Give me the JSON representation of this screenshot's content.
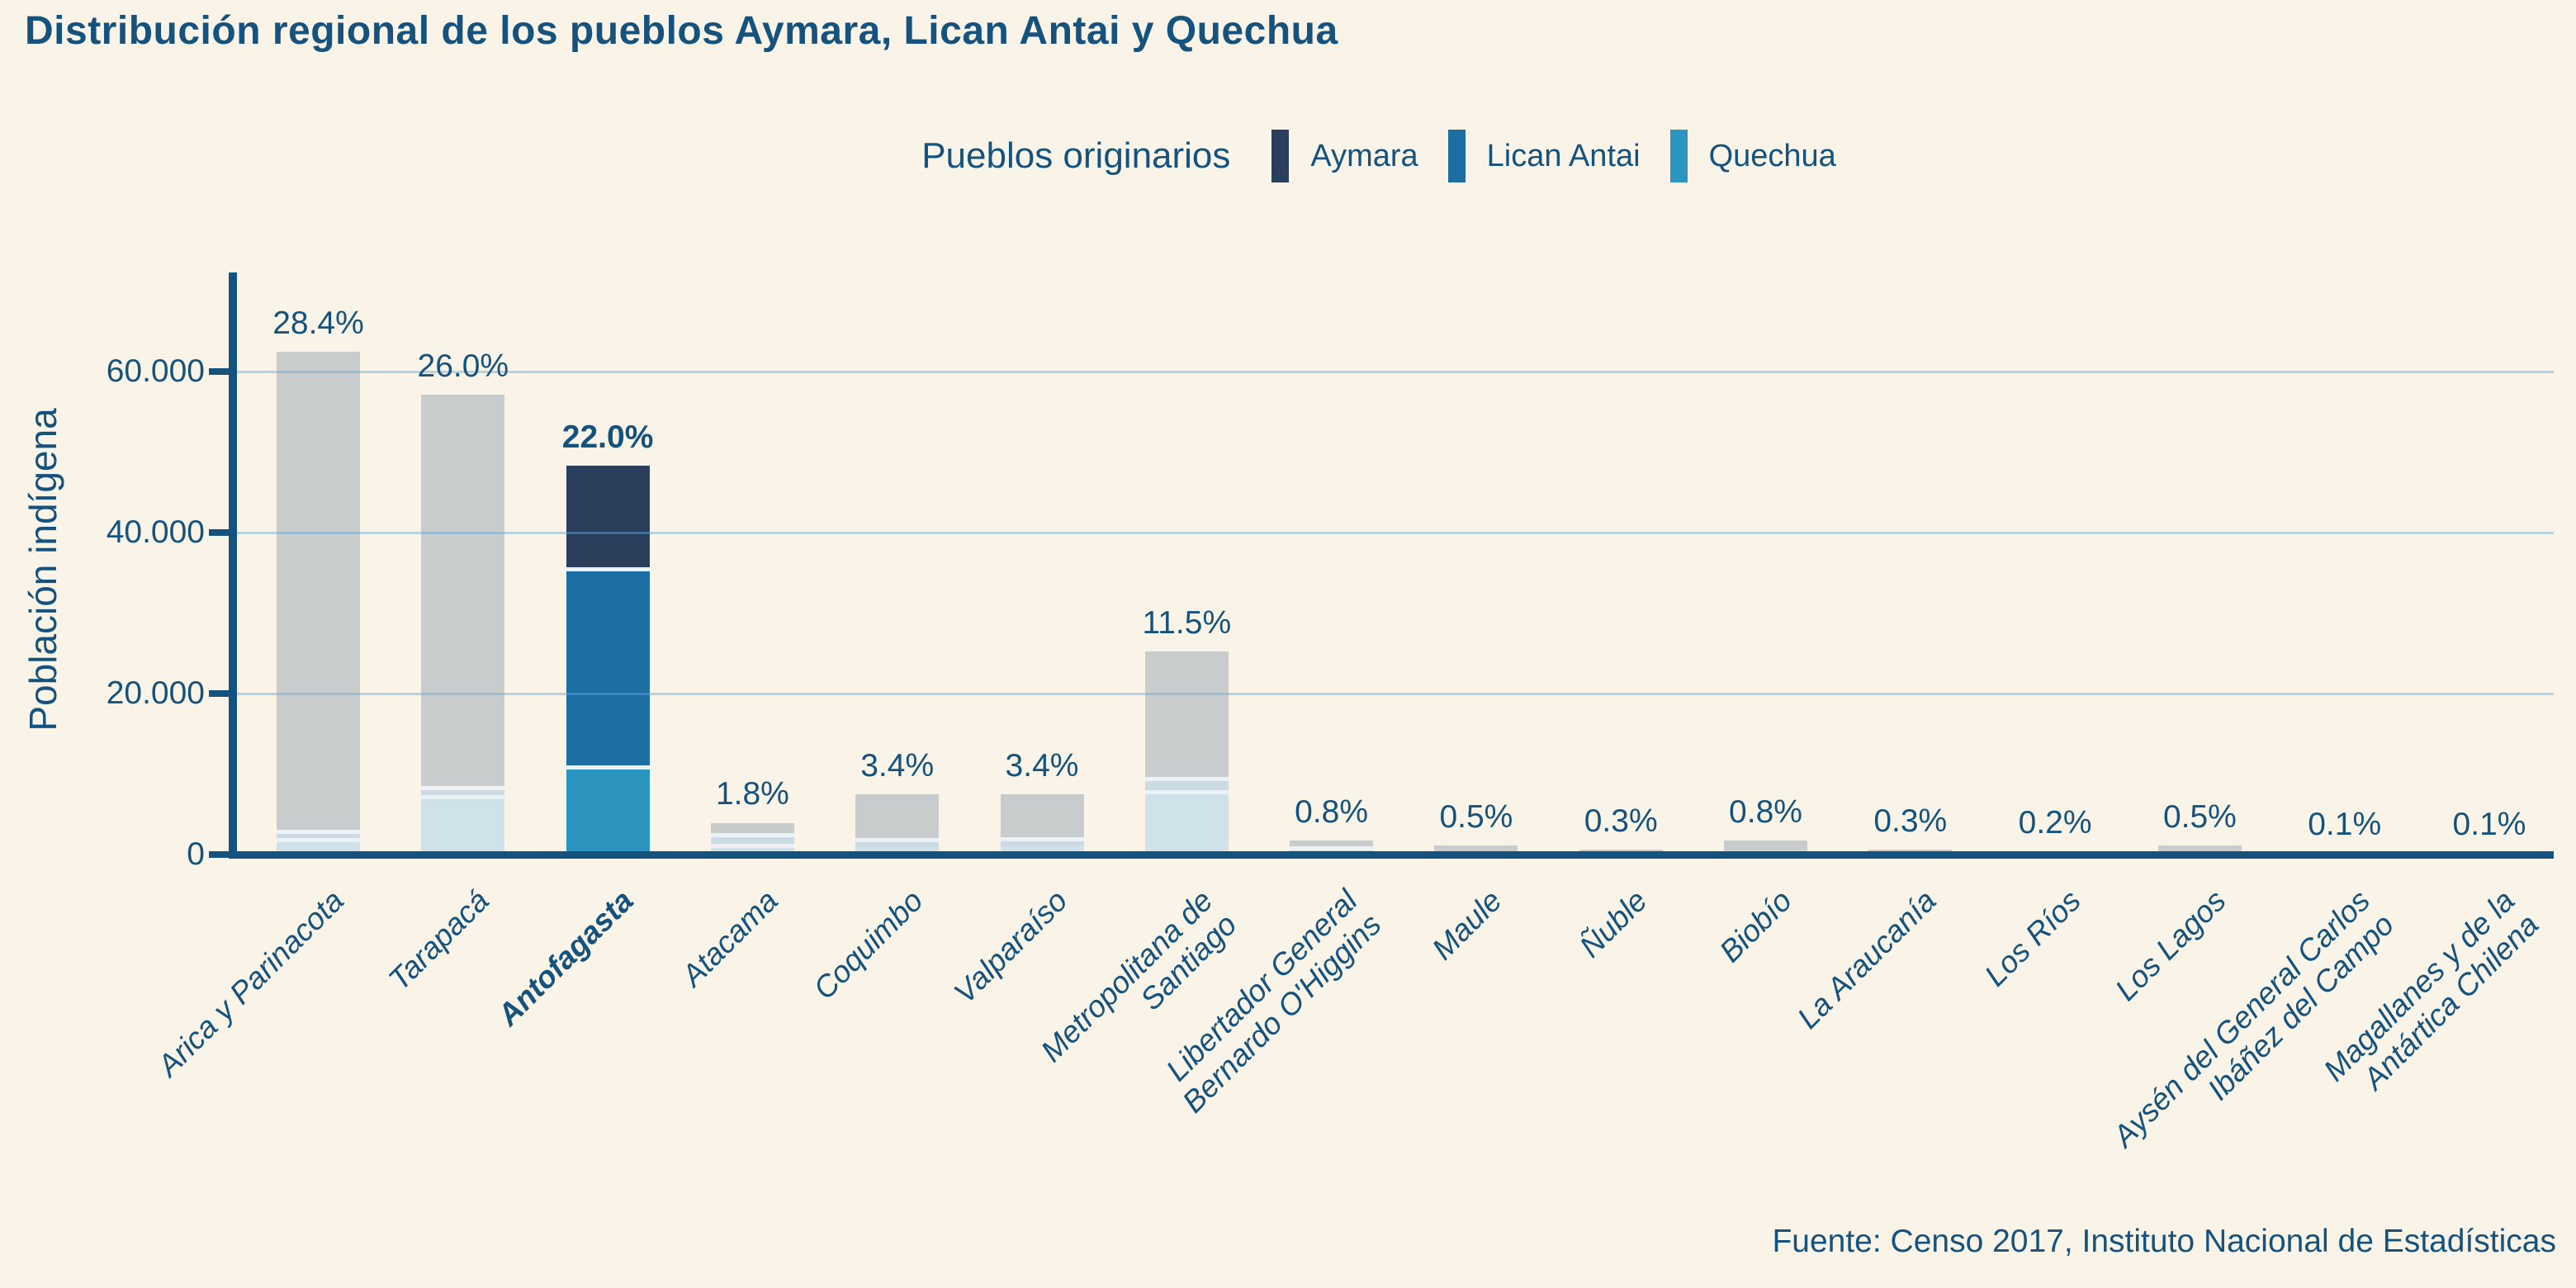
{
  "title": "Distribución regional de los pueblos Aymara, Lican Antai y Quechua",
  "legend": {
    "title": "Pueblos originarios",
    "items": [
      {
        "label": "Aymara",
        "color": "#2b3e5c"
      },
      {
        "label": "Lican Antai",
        "color": "#1d6fa3"
      },
      {
        "label": "Quechua",
        "color": "#2d96c0"
      }
    ]
  },
  "source": "Fuente: Censo 2017, Instituto Nacional de Estadísticas",
  "chart_data": {
    "type": "bar",
    "stacked": true,
    "title": "Distribución regional de los pueblos Aymara, Lican Antai y Quechua",
    "xlabel": "",
    "ylabel": "Población indígena",
    "ylim": [
      0,
      72000
    ],
    "grid": true,
    "legend_position": "top",
    "highlight_category": "Antofagasta",
    "y_ticks": [
      {
        "label": "0",
        "value": 0
      },
      {
        "label": "20.000",
        "value": 20000
      },
      {
        "label": "40.000",
        "value": 40000
      },
      {
        "label": "60.000",
        "value": 60000
      }
    ],
    "categories": [
      "Arica y Parinacota",
      "Tarapacá",
      "Antofagasta",
      "Atacama",
      "Coquimbo",
      "Valparaíso",
      "Metropolitana de Santiago",
      "Libertador General Bernardo O'Higgins",
      "Maule",
      "Ñuble",
      "Biobío",
      "La Araucanía",
      "Los Ríos",
      "Los Lagos",
      "Aysén del General Carlos Ibáñez del Campo",
      "Magallanes y de la Antártica Chilena"
    ],
    "category_label_lines": [
      [
        "Arica y Parinacota"
      ],
      [
        "Tarapacá"
      ],
      [
        "Antofagasta"
      ],
      [
        "Atacama"
      ],
      [
        "Coquimbo"
      ],
      [
        "Valparaíso"
      ],
      [
        "Metropolitana de",
        "Santiago"
      ],
      [
        "Libertador General",
        "Bernardo O'Higgins"
      ],
      [
        "Maule"
      ],
      [
        "Ñuble"
      ],
      [
        "Biobío"
      ],
      [
        "La Araucanía"
      ],
      [
        "Los Ríos"
      ],
      [
        "Los Lagos"
      ],
      [
        "Aysén del General Carlos",
        "Ibáñez del Campo"
      ],
      [
        "Magallanes y de la",
        "Antártica Chilena"
      ]
    ],
    "percent_labels": [
      "28.4%",
      "26.0%",
      "22.0%",
      "1.8%",
      "3.4%",
      "3.4%",
      "11.5%",
      "0.8%",
      "0.5%",
      "0.3%",
      "0.8%",
      "0.3%",
      "0.2%",
      "0.5%",
      "0.1%",
      "0.1%"
    ],
    "series": [
      {
        "name": "Quechua",
        "values": [
          2100,
          7400,
          10550,
          850,
          900,
          1000,
          8000,
          350,
          250,
          150,
          400,
          150,
          100,
          250,
          50,
          50
        ]
      },
      {
        "name": "Lican Antai",
        "values": [
          450,
          600,
          25100,
          1300,
          600,
          600,
          1100,
          150,
          100,
          60,
          150,
          60,
          40,
          100,
          20,
          20
        ]
      },
      {
        "name": "Aymara",
        "values": [
          59950,
          49100,
          12650,
          1800,
          5950,
          5850,
          16150,
          1250,
          750,
          450,
          1200,
          450,
          300,
          750,
          150,
          150
        ]
      }
    ],
    "totals": [
      62500,
      57100,
      48300,
      3950,
      7450,
      7450,
      25250,
      1750,
      1100,
      660,
      1750,
      660,
      440,
      1100,
      220,
      220
    ],
    "colors": {
      "background": "#f9f4e7",
      "text": "#15537e",
      "axis": "#15537e",
      "gridline": "#68a8d6",
      "separator": "#edf1f3",
      "active": {
        "quechua": "#2d96c0",
        "lican_antai": "#1d6fa3",
        "aymara": "#2b3e5c"
      },
      "muted": {
        "quechua": "#cfe1e9",
        "lican_antai": "#ccdbe3",
        "aymara": "#c8cccd"
      }
    }
  }
}
